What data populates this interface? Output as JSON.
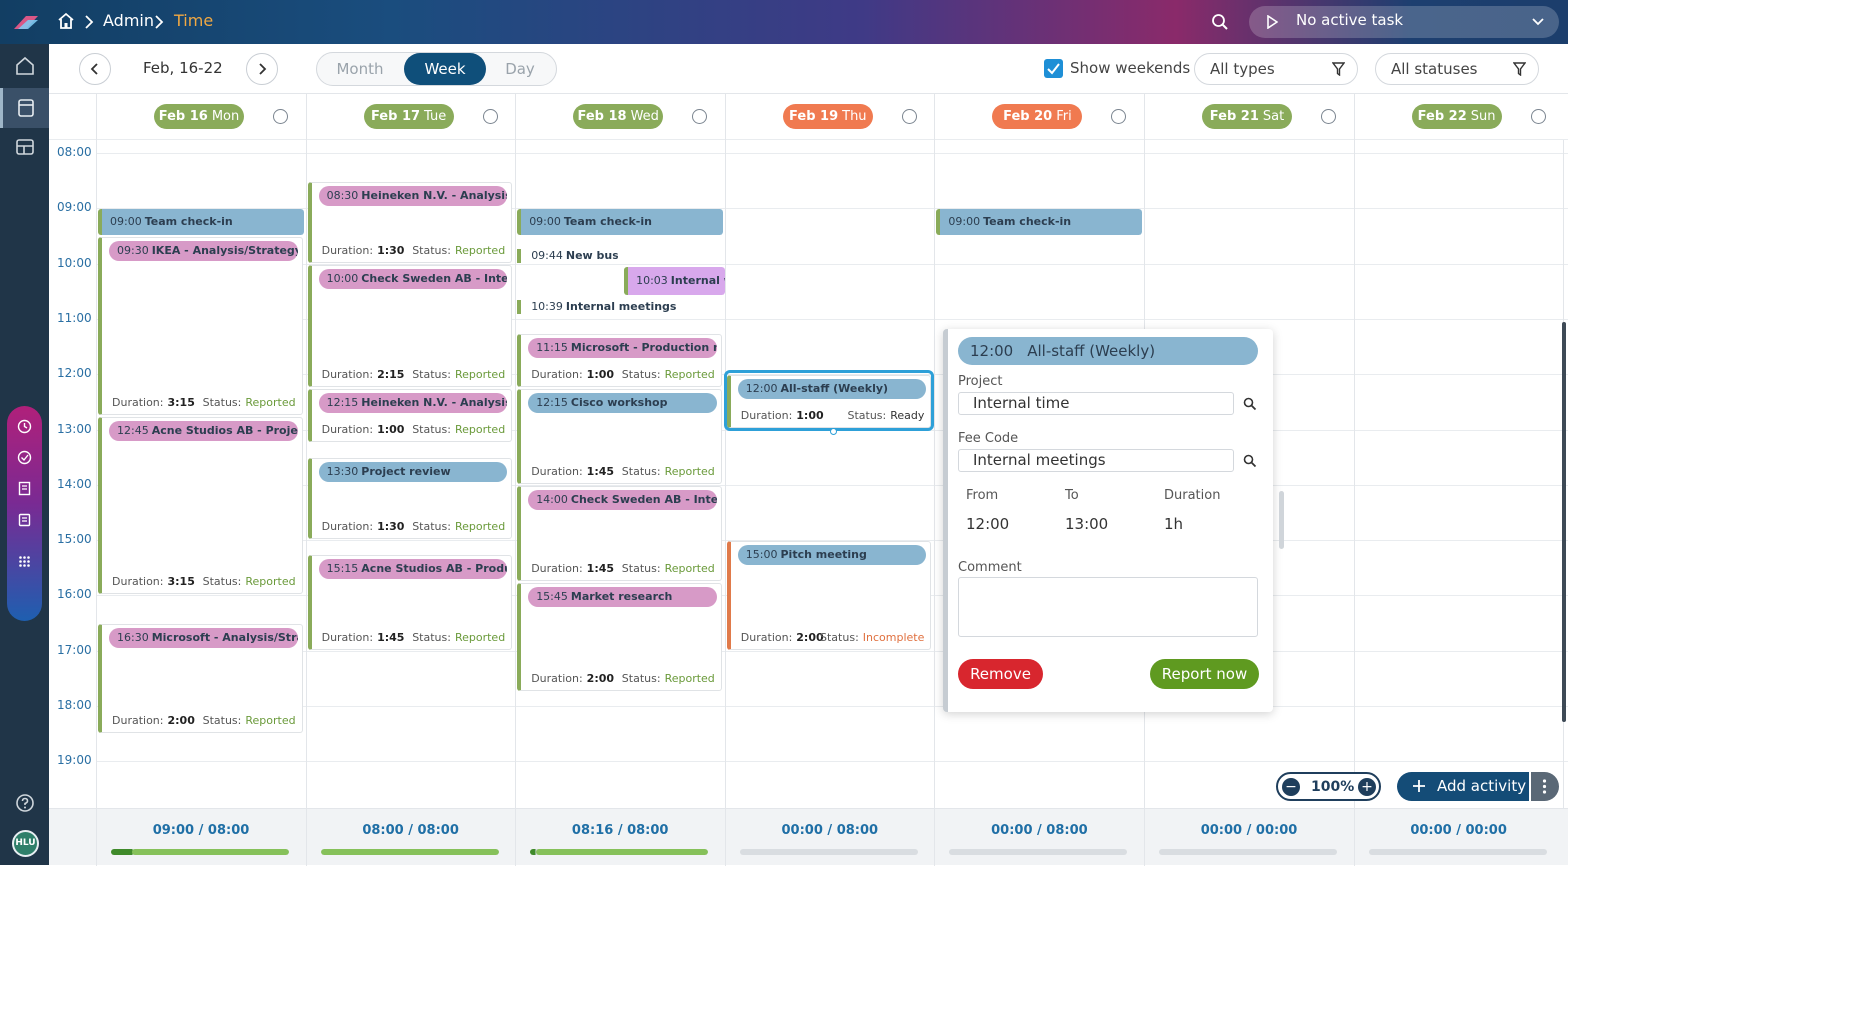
{
  "header": {
    "breadcrumb": {
      "admin": "Admin",
      "current": "Time"
    },
    "task_label": "No active task",
    "colors": {
      "accent_current": "#f0a843"
    }
  },
  "toolbar": {
    "range": "Feb, 16-22",
    "views": [
      "Month",
      "Week",
      "Day"
    ],
    "active_view": "Week",
    "show_weekends_label": "Show weekends",
    "show_weekends_checked": true,
    "types_filter": "All types",
    "status_filter": "All statuses"
  },
  "days": [
    {
      "date": "Feb 16",
      "dow": "Mon",
      "color": "#8aab5a",
      "total": "09:00 / 08:00",
      "progress": 1.0,
      "progress_start": 0.12
    },
    {
      "date": "Feb 17",
      "dow": "Tue",
      "color": "#8aab5a",
      "total": "08:00 / 08:00",
      "progress": 1.0,
      "progress_start": 0
    },
    {
      "date": "Feb 18",
      "dow": "Wed",
      "color": "#8aab5a",
      "total": "08:16 / 08:00",
      "progress": 1.0,
      "progress_start": 0.03
    },
    {
      "date": "Feb 19",
      "dow": "Thu",
      "color": "#f07a50",
      "total": "00:00 / 08:00",
      "progress": 0,
      "progress_start": 0
    },
    {
      "date": "Feb 20",
      "dow": "Fri",
      "color": "#f07a50",
      "total": "00:00 / 08:00",
      "progress": 0,
      "progress_start": 0
    },
    {
      "date": "Feb 21",
      "dow": "Sat",
      "color": "#8aab5a",
      "total": "00:00 / 00:00",
      "progress": 0,
      "progress_start": 0
    },
    {
      "date": "Feb 22",
      "dow": "Sun",
      "color": "#8aab5a",
      "total": "00:00 / 00:00",
      "progress": 0,
      "progress_start": 0
    }
  ],
  "hours": [
    "08:00",
    "09:00",
    "10:00",
    "11:00",
    "12:00",
    "13:00",
    "14:00",
    "15:00",
    "16:00",
    "17:00",
    "18:00",
    "19:00"
  ],
  "events": [
    {
      "day": 0,
      "start": "09:00",
      "end": "09:30",
      "time": "09:00",
      "title": "Team check-in",
      "kind": "bar",
      "color": "blue"
    },
    {
      "day": 0,
      "start": "09:30",
      "end": "12:45",
      "time": "09:30",
      "title": "IKEA - Analysis/Strategy",
      "kind": "card",
      "color": "pink",
      "duration": "3:15",
      "status": "Reported"
    },
    {
      "day": 0,
      "start": "12:45",
      "end": "16:00",
      "time": "12:45",
      "title": "Acne Studios AB - Project...",
      "kind": "card",
      "color": "pink",
      "duration": "3:15",
      "status": "Reported"
    },
    {
      "day": 0,
      "start": "16:30",
      "end": "18:30",
      "time": "16:30",
      "title": "Microsoft - Analysis/Strat...",
      "kind": "card",
      "color": "pink",
      "duration": "2:00",
      "status": "Reported"
    },
    {
      "day": 1,
      "start": "08:30",
      "end": "10:00",
      "time": "08:30",
      "title": "Heineken N.V. - Analysis/...",
      "kind": "card",
      "color": "pink",
      "duration": "1:30",
      "status": "Reported"
    },
    {
      "day": 1,
      "start": "10:00",
      "end": "12:15",
      "time": "10:00",
      "title": "Check Sweden AB - Inter...",
      "kind": "card",
      "color": "pink",
      "duration": "2:15",
      "status": "Reported"
    },
    {
      "day": 1,
      "start": "12:15",
      "end": "13:15",
      "time": "12:15",
      "title": "Heineken N.V. - Analysis/...",
      "kind": "card",
      "color": "pink",
      "duration": "1:00",
      "status": "Reported"
    },
    {
      "day": 1,
      "start": "13:30",
      "end": "15:00",
      "time": "13:30",
      "title": "Project review",
      "kind": "card",
      "color": "blue",
      "duration": "1:30",
      "status": "Reported"
    },
    {
      "day": 1,
      "start": "15:15",
      "end": "17:00",
      "time": "15:15",
      "title": "Acne Studios AB - Produc...",
      "kind": "card",
      "color": "pink",
      "duration": "1:45",
      "status": "Reported"
    },
    {
      "day": 2,
      "start": "09:00",
      "end": "09:30",
      "time": "09:00",
      "title": "Team check-in",
      "kind": "bar",
      "color": "blue"
    },
    {
      "day": 2,
      "start": "09:44",
      "end": "10:00",
      "time": "09:44",
      "title": "New busine",
      "kind": "small",
      "color": "lilac",
      "left": 0,
      "width": 0.5
    },
    {
      "day": 2,
      "start": "10:03",
      "end": "10:35",
      "time": "10:03",
      "title": "Internal wo",
      "kind": "bar",
      "color": "lilac",
      "left": 0.5,
      "width": 0.5
    },
    {
      "day": 2,
      "start": "10:39",
      "end": "10:55",
      "time": "10:39",
      "title": "Internal meetings",
      "kind": "small",
      "color": "lilac",
      "left": 0,
      "width": 1
    },
    {
      "day": 2,
      "start": "11:15",
      "end": "12:15",
      "time": "11:15",
      "title": "Microsoft - Production ma...",
      "kind": "card",
      "color": "pink",
      "duration": "1:00",
      "status": "Reported"
    },
    {
      "day": 2,
      "start": "12:15",
      "end": "14:00",
      "time": "12:15",
      "title": "Cisco workshop",
      "kind": "card",
      "color": "blue",
      "duration": "1:45",
      "status": "Reported"
    },
    {
      "day": 2,
      "start": "14:00",
      "end": "15:45",
      "time": "14:00",
      "title": "Check Sweden AB - Inter...",
      "kind": "card",
      "color": "pink",
      "duration": "1:45",
      "status": "Reported"
    },
    {
      "day": 2,
      "start": "15:45",
      "end": "17:45",
      "time": "15:45",
      "title": "Market research",
      "kind": "card",
      "color": "pink",
      "duration": "2:00",
      "status": "Reported"
    },
    {
      "day": 3,
      "start": "12:00",
      "end": "13:00",
      "time": "12:00",
      "title": "All-staff (Weekly)",
      "kind": "card",
      "color": "blue",
      "duration": "1:00",
      "status": "Ready",
      "selected": true
    },
    {
      "day": 3,
      "start": "15:00",
      "end": "17:00",
      "time": "15:00",
      "title": "Pitch meeting",
      "kind": "card",
      "color": "blue",
      "duration": "2:00",
      "status": "Incomplete"
    },
    {
      "day": 4,
      "start": "09:00",
      "end": "09:30",
      "time": "09:00",
      "title": "Team check-in",
      "kind": "bar",
      "color": "blue"
    }
  ],
  "labels": {
    "duration": "Duration:",
    "status": "Status:"
  },
  "panel": {
    "time": "12:00",
    "title": "All-staff (Weekly)",
    "project_label": "Project",
    "project": "Internal time",
    "fee_label": "Fee Code",
    "fee": "Internal meetings",
    "from_label": "From",
    "to_label": "To",
    "duration_label": "Duration",
    "from": "12:00",
    "to": "13:00",
    "duration": "1h",
    "comment_label": "Comment",
    "comment": "",
    "remove_label": "Remove",
    "report_label": "Report now"
  },
  "zoom": {
    "level": "100%"
  },
  "add_activity_label": "Add activity",
  "user": {
    "initials": "HLU"
  }
}
